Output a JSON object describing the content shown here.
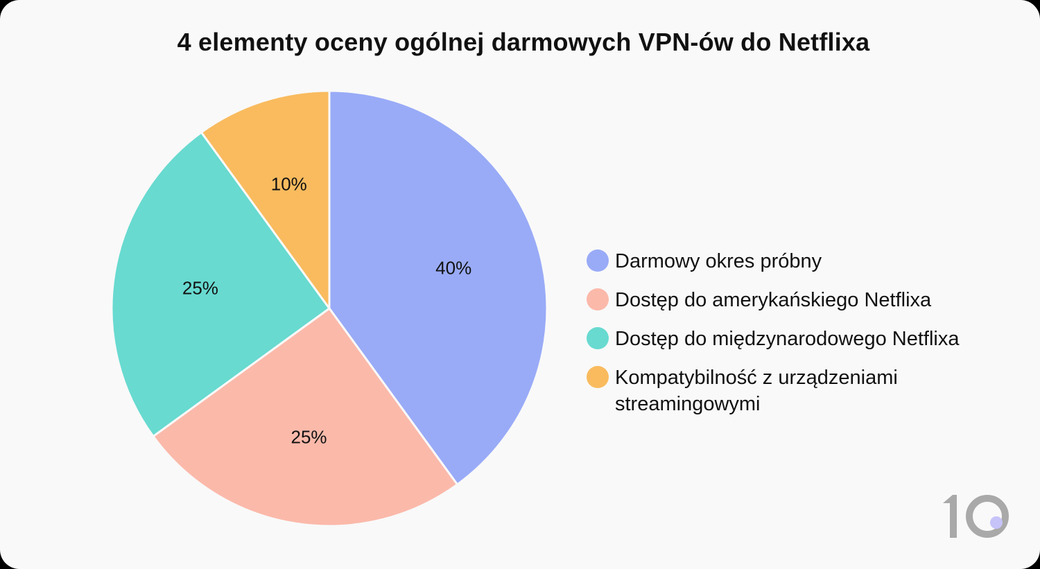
{
  "title": "4 elementy oceny ogólnej darmowych VPN-ów do Netflixa",
  "chart_data": {
    "type": "pie",
    "title": "4 elementy oceny ogólnej darmowych VPN-ów do Netflixa",
    "categories": [
      "Darmowy okres próbny",
      "Dostęp do amerykańskiego Netflixa",
      "Dostęp do międzynarodowego Netflixa",
      "Kompatybilność z urządzeniami streamingowymi"
    ],
    "values": [
      40,
      25,
      25,
      10
    ],
    "colors": [
      "#99abf7",
      "#fbb9aa",
      "#68dad0",
      "#f9bb5e"
    ],
    "labels": [
      "40%",
      "25%",
      "25%",
      "10%"
    ],
    "legend_position": "right"
  },
  "legend": [
    {
      "label": "Darmowy okres próbny",
      "color": "#99abf7"
    },
    {
      "label": "Dostęp do amerykańskiego Netflixa",
      "color": "#fbb9aa"
    },
    {
      "label": "Dostęp do międzynarodowego Netflixa",
      "color": "#68dad0"
    },
    {
      "label": "Kompatybilność z urządzeniami streamingowymi",
      "color": "#f9bb5e"
    }
  ],
  "logo": {
    "text": "10",
    "dot_color": "#c6c3f9",
    "color": "#a9a9a9"
  }
}
